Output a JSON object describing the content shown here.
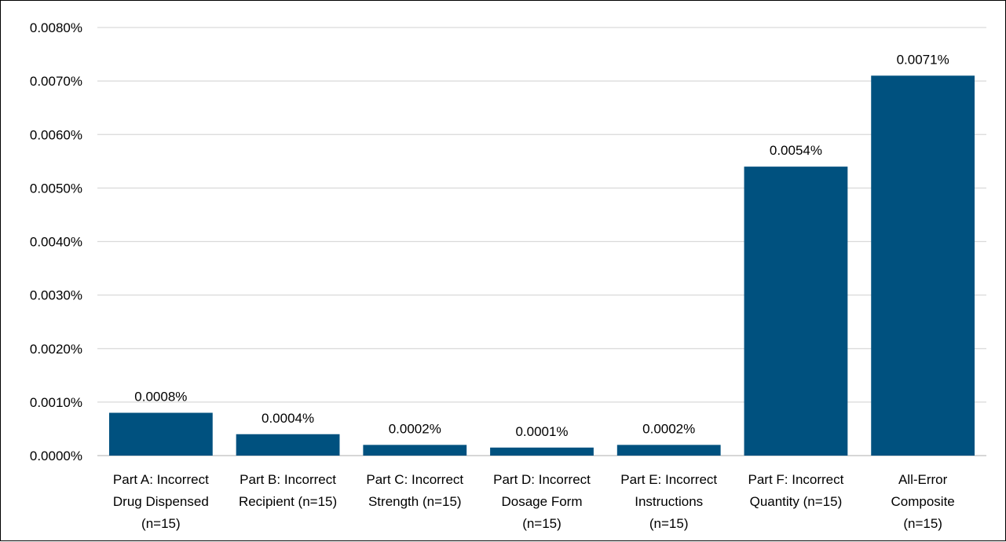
{
  "chart_data": {
    "type": "bar",
    "categories": [
      [
        "Part A: Incorrect",
        "Drug Dispensed",
        "(n=15)"
      ],
      [
        "Part B: Incorrect",
        "Recipient (n=15)"
      ],
      [
        "Part C: Incorrect",
        "Strength (n=15)"
      ],
      [
        "Part D: Incorrect",
        "Dosage Form",
        "(n=15)"
      ],
      [
        "Part E: Incorrect",
        "Instructions",
        "(n=15)"
      ],
      [
        "Part F: Incorrect",
        "Quantity (n=15)"
      ],
      [
        "All-Error",
        "Composite",
        "(n=15)"
      ]
    ],
    "values": [
      0.0008,
      0.0004,
      0.0002,
      0.00015,
      0.0002,
      0.0054,
      0.0071
    ],
    "data_labels": [
      "0.0008%",
      "0.0004%",
      "0.0002%",
      "0.0001%",
      "0.0002%",
      "0.0054%",
      "0.0071%"
    ],
    "y_ticks": [
      "0.0000%",
      "0.0010%",
      "0.0020%",
      "0.0030%",
      "0.0040%",
      "0.0050%",
      "0.0060%",
      "0.0070%",
      "0.0080%"
    ],
    "ylim": [
      0,
      0.008
    ],
    "grid": true,
    "legend": "none",
    "bar_color": "#00517f"
  }
}
